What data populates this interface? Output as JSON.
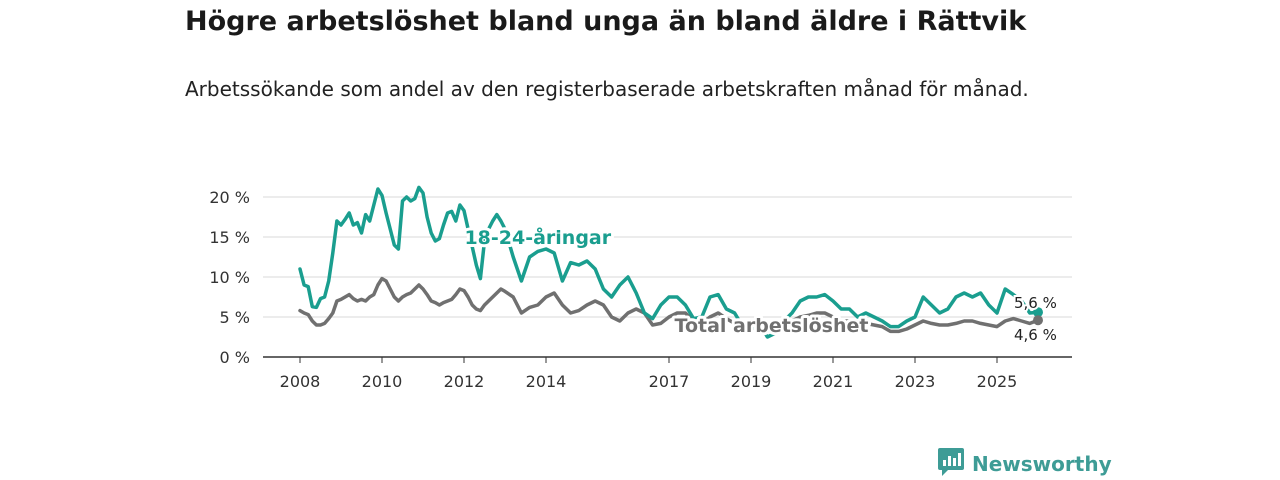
{
  "title": "Högre arbetslöshet bland unga än bland äldre i Rättvik",
  "subtitle": "Arbetssökande som andel av den registerbaserade arbetskraften månad för månad.",
  "brand": {
    "name": "Newsworthy",
    "color": "#3e9c96"
  },
  "colors": {
    "youth": "#1a9e8f",
    "total": "#707070",
    "grid": "#d9d9d9",
    "axis": "#333333"
  },
  "chart_data": {
    "type": "line",
    "title": "Högre arbetslöshet bland unga än bland äldre i Rättvik",
    "subtitle": "Arbetssökande som andel av den registerbaserade arbetskraften månad för månad.",
    "xlabel": "",
    "ylabel": "",
    "x_range": [
      2008.0,
      2026.0
    ],
    "ylim": [
      0,
      20
    ],
    "y_ticks": [
      {
        "value": 0,
        "label": "0 %"
      },
      {
        "value": 5,
        "label": "5 %"
      },
      {
        "value": 10,
        "label": "10 %"
      },
      {
        "value": 15,
        "label": "15 %"
      },
      {
        "value": 20,
        "label": "20 %"
      }
    ],
    "x_ticks": [
      {
        "value": 2008,
        "label": "2008"
      },
      {
        "value": 2010,
        "label": "2010"
      },
      {
        "value": 2012,
        "label": "2012"
      },
      {
        "value": 2014,
        "label": "2014"
      },
      {
        "value": 2017,
        "label": "2017"
      },
      {
        "value": 2019,
        "label": "2019"
      },
      {
        "value": 2021,
        "label": "2021"
      },
      {
        "value": 2023,
        "label": "2023"
      },
      {
        "value": 2025,
        "label": "2025"
      }
    ],
    "grid": true,
    "series": [
      {
        "name": "18-24-åringar",
        "color": "#1a9e8f",
        "x": [
          2008.0,
          2008.1,
          2008.2,
          2008.3,
          2008.4,
          2008.5,
          2008.6,
          2008.7,
          2008.8,
          2008.9,
          2009.0,
          2009.1,
          2009.2,
          2009.3,
          2009.4,
          2009.5,
          2009.6,
          2009.7,
          2009.8,
          2009.9,
          2010.0,
          2010.1,
          2010.2,
          2010.3,
          2010.4,
          2010.5,
          2010.6,
          2010.7,
          2010.8,
          2010.9,
          2011.0,
          2011.1,
          2011.2,
          2011.3,
          2011.4,
          2011.5,
          2011.6,
          2011.7,
          2011.8,
          2011.9,
          2012.0,
          2012.1,
          2012.2,
          2012.3,
          2012.4,
          2012.5,
          2012.6,
          2012.7,
          2012.8,
          2012.9,
          2013.0,
          2013.2,
          2013.4,
          2013.6,
          2013.8,
          2014.0,
          2014.2,
          2014.4,
          2014.6,
          2014.8,
          2015.0,
          2015.2,
          2015.4,
          2015.6,
          2015.8,
          2016.0,
          2016.2,
          2016.4,
          2016.6,
          2016.8,
          2017.0,
          2017.2,
          2017.4,
          2017.6,
          2017.8,
          2018.0,
          2018.2,
          2018.4,
          2018.6,
          2018.8,
          2019.0,
          2019.2,
          2019.4,
          2019.6,
          2019.8,
          2020.0,
          2020.2,
          2020.4,
          2020.6,
          2020.8,
          2021.0,
          2021.2,
          2021.4,
          2021.6,
          2021.8,
          2022.0,
          2022.2,
          2022.4,
          2022.6,
          2022.8,
          2023.0,
          2023.2,
          2023.4,
          2023.6,
          2023.8,
          2024.0,
          2024.2,
          2024.4,
          2024.6,
          2024.8,
          2025.0,
          2025.2,
          2025.4,
          2025.6,
          2025.8,
          2026.0
        ],
        "y": [
          11.0,
          9.0,
          8.8,
          6.3,
          6.2,
          7.3,
          7.5,
          9.5,
          13.0,
          17.0,
          16.5,
          17.2,
          18.0,
          16.5,
          16.8,
          15.5,
          17.8,
          17.0,
          19.0,
          21.0,
          20.2,
          18.0,
          16.0,
          14.0,
          13.5,
          19.5,
          20.0,
          19.5,
          19.8,
          21.2,
          20.5,
          17.5,
          15.5,
          14.5,
          14.8,
          16.5,
          18.0,
          18.2,
          17.0,
          19.0,
          18.3,
          16.0,
          13.8,
          11.5,
          9.8,
          14.5,
          16.0,
          17.0,
          17.8,
          17.0,
          16.0,
          12.5,
          9.5,
          12.5,
          13.2,
          13.5,
          13.0,
          9.5,
          11.8,
          11.5,
          12.0,
          11.0,
          8.5,
          7.5,
          9.0,
          10.0,
          8.0,
          5.5,
          4.8,
          6.5,
          7.5,
          7.5,
          6.5,
          4.8,
          5.0,
          7.5,
          7.8,
          6.0,
          5.5,
          3.8,
          3.5,
          4.2,
          2.5,
          3.0,
          4.5,
          5.5,
          7.0,
          7.5,
          7.5,
          7.8,
          7.0,
          6.0,
          6.0,
          5.0,
          5.5,
          5.0,
          4.5,
          3.8,
          3.8,
          4.5,
          5.0,
          7.5,
          6.5,
          5.5,
          6.0,
          7.5,
          8.0,
          7.5,
          8.0,
          6.5,
          5.5,
          8.5,
          7.8,
          7.0,
          5.5,
          5.6
        ]
      },
      {
        "name": "Total arbetslöshet",
        "color": "#707070",
        "x": [
          2008.0,
          2008.1,
          2008.2,
          2008.3,
          2008.4,
          2008.5,
          2008.6,
          2008.7,
          2008.8,
          2008.9,
          2009.0,
          2009.1,
          2009.2,
          2009.3,
          2009.4,
          2009.5,
          2009.6,
          2009.7,
          2009.8,
          2009.9,
          2010.0,
          2010.1,
          2010.2,
          2010.3,
          2010.4,
          2010.5,
          2010.6,
          2010.7,
          2010.8,
          2010.9,
          2011.0,
          2011.1,
          2011.2,
          2011.3,
          2011.4,
          2011.5,
          2011.6,
          2011.7,
          2011.8,
          2011.9,
          2012.0,
          2012.1,
          2012.2,
          2012.3,
          2012.4,
          2012.5,
          2012.6,
          2012.7,
          2012.8,
          2012.9,
          2013.0,
          2013.2,
          2013.4,
          2013.6,
          2013.8,
          2014.0,
          2014.2,
          2014.4,
          2014.6,
          2014.8,
          2015.0,
          2015.2,
          2015.4,
          2015.6,
          2015.8,
          2016.0,
          2016.2,
          2016.4,
          2016.6,
          2016.8,
          2017.0,
          2017.2,
          2017.4,
          2017.6,
          2017.8,
          2018.0,
          2018.2,
          2018.4,
          2018.6,
          2018.8,
          2019.0,
          2019.2,
          2019.4,
          2019.6,
          2019.8,
          2020.0,
          2020.2,
          2020.4,
          2020.6,
          2020.8,
          2021.0,
          2021.2,
          2021.4,
          2021.6,
          2021.8,
          2022.0,
          2022.2,
          2022.4,
          2022.6,
          2022.8,
          2023.0,
          2023.2,
          2023.4,
          2023.6,
          2023.8,
          2024.0,
          2024.2,
          2024.4,
          2024.6,
          2024.8,
          2025.0,
          2025.2,
          2025.4,
          2025.6,
          2025.8,
          2026.0
        ],
        "y": [
          5.8,
          5.5,
          5.3,
          4.5,
          4.0,
          4.0,
          4.2,
          4.8,
          5.5,
          7.0,
          7.2,
          7.5,
          7.8,
          7.3,
          7.0,
          7.2,
          7.0,
          7.5,
          7.8,
          9.0,
          9.8,
          9.5,
          8.5,
          7.5,
          7.0,
          7.5,
          7.8,
          8.0,
          8.5,
          9.0,
          8.5,
          7.8,
          7.0,
          6.8,
          6.5,
          6.8,
          7.0,
          7.2,
          7.8,
          8.5,
          8.3,
          7.5,
          6.5,
          6.0,
          5.8,
          6.5,
          7.0,
          7.5,
          8.0,
          8.5,
          8.2,
          7.5,
          5.5,
          6.2,
          6.5,
          7.5,
          8.0,
          6.5,
          5.5,
          5.8,
          6.5,
          7.0,
          6.5,
          5.0,
          4.5,
          5.5,
          6.0,
          5.5,
          4.0,
          4.2,
          5.0,
          5.5,
          5.5,
          4.5,
          4.2,
          5.0,
          5.5,
          4.8,
          4.2,
          3.5,
          3.5,
          3.8,
          3.2,
          3.5,
          4.2,
          4.5,
          5.0,
          5.2,
          5.5,
          5.5,
          5.0,
          4.5,
          4.5,
          4.0,
          4.2,
          4.0,
          3.8,
          3.2,
          3.2,
          3.5,
          4.0,
          4.5,
          4.2,
          4.0,
          4.0,
          4.2,
          4.5,
          4.5,
          4.2,
          4.0,
          3.8,
          4.5,
          4.8,
          4.5,
          4.2,
          4.6
        ]
      }
    ],
    "annotations": [
      {
        "text": "18-24-åringar",
        "series": "18-24-åringar",
        "x": 2013.8,
        "y": 15.0
      },
      {
        "text": "Total arbetslöshet",
        "series": "Total arbetslöshet",
        "x": 2019.5,
        "y": 4.0
      }
    ],
    "end_labels": [
      {
        "text": "5,6 %",
        "series": "18-24-åringar",
        "x": 2026.0,
        "y": 5.6
      },
      {
        "text": "4,6 %",
        "series": "Total arbetslöshet",
        "x": 2026.0,
        "y": 4.6
      }
    ]
  }
}
